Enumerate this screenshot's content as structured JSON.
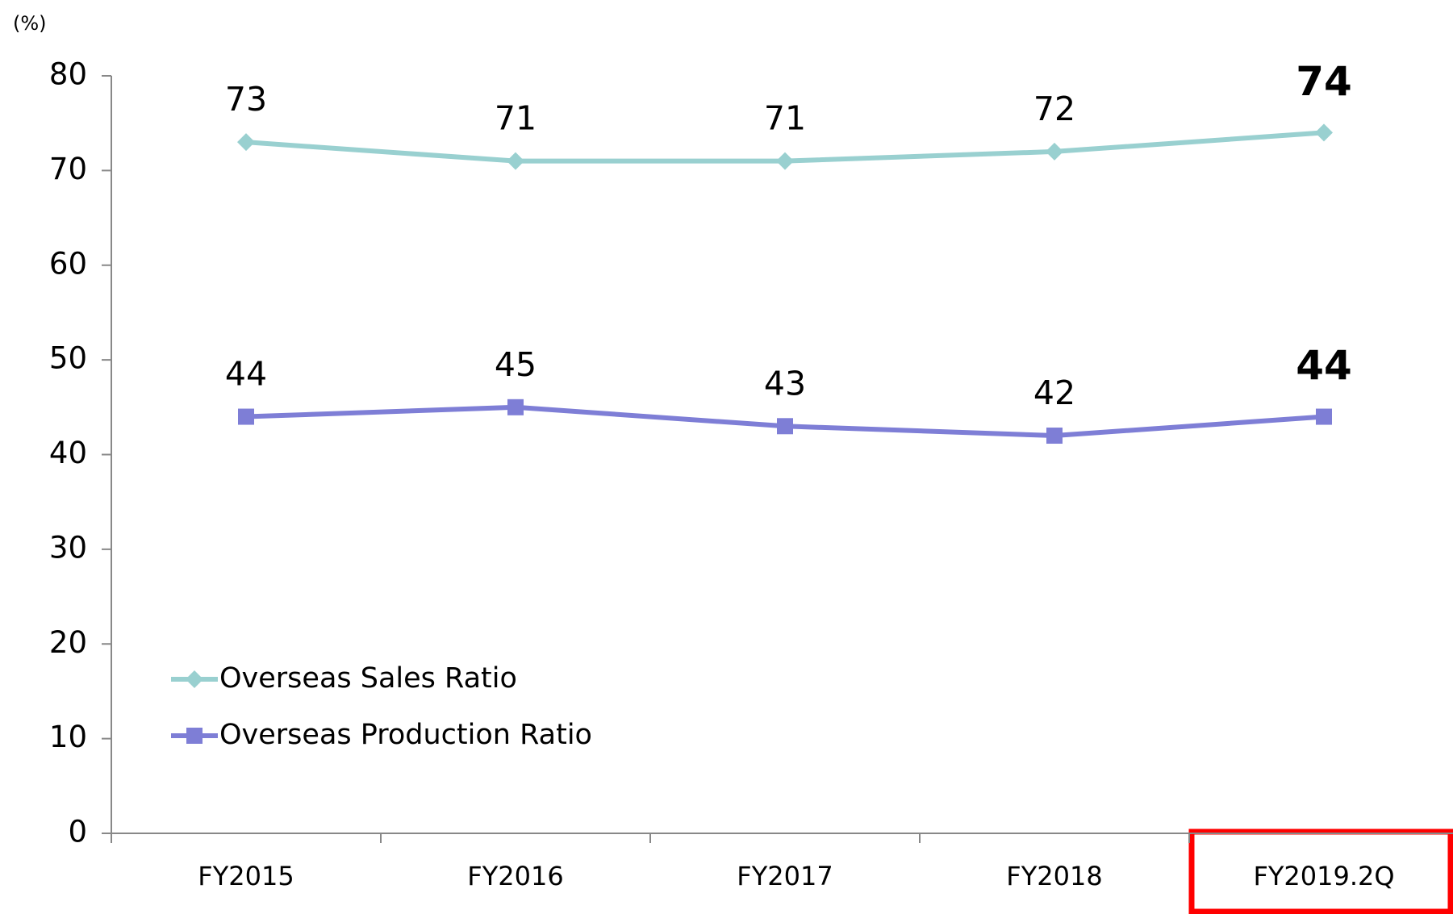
{
  "chart_data": {
    "type": "line",
    "y_label": "(%)",
    "categories": [
      "FY2015",
      "FY2016",
      "FY2017",
      "FY2018",
      "FY2019.2Q"
    ],
    "series": [
      {
        "name": "Overseas Sales Ratio",
        "color": "#99d0d0",
        "marker": "diamond",
        "values": [
          73,
          71,
          71,
          72,
          74
        ]
      },
      {
        "name": "Overseas Production Ratio",
        "color": "#7e7ed6",
        "marker": "square",
        "values": [
          44,
          45,
          43,
          42,
          44
        ]
      }
    ],
    "ylim": [
      0,
      80
    ],
    "yticks": [
      0,
      10,
      20,
      30,
      40,
      50,
      60,
      70,
      80
    ],
    "grid": false,
    "legend": "lower left"
  }
}
